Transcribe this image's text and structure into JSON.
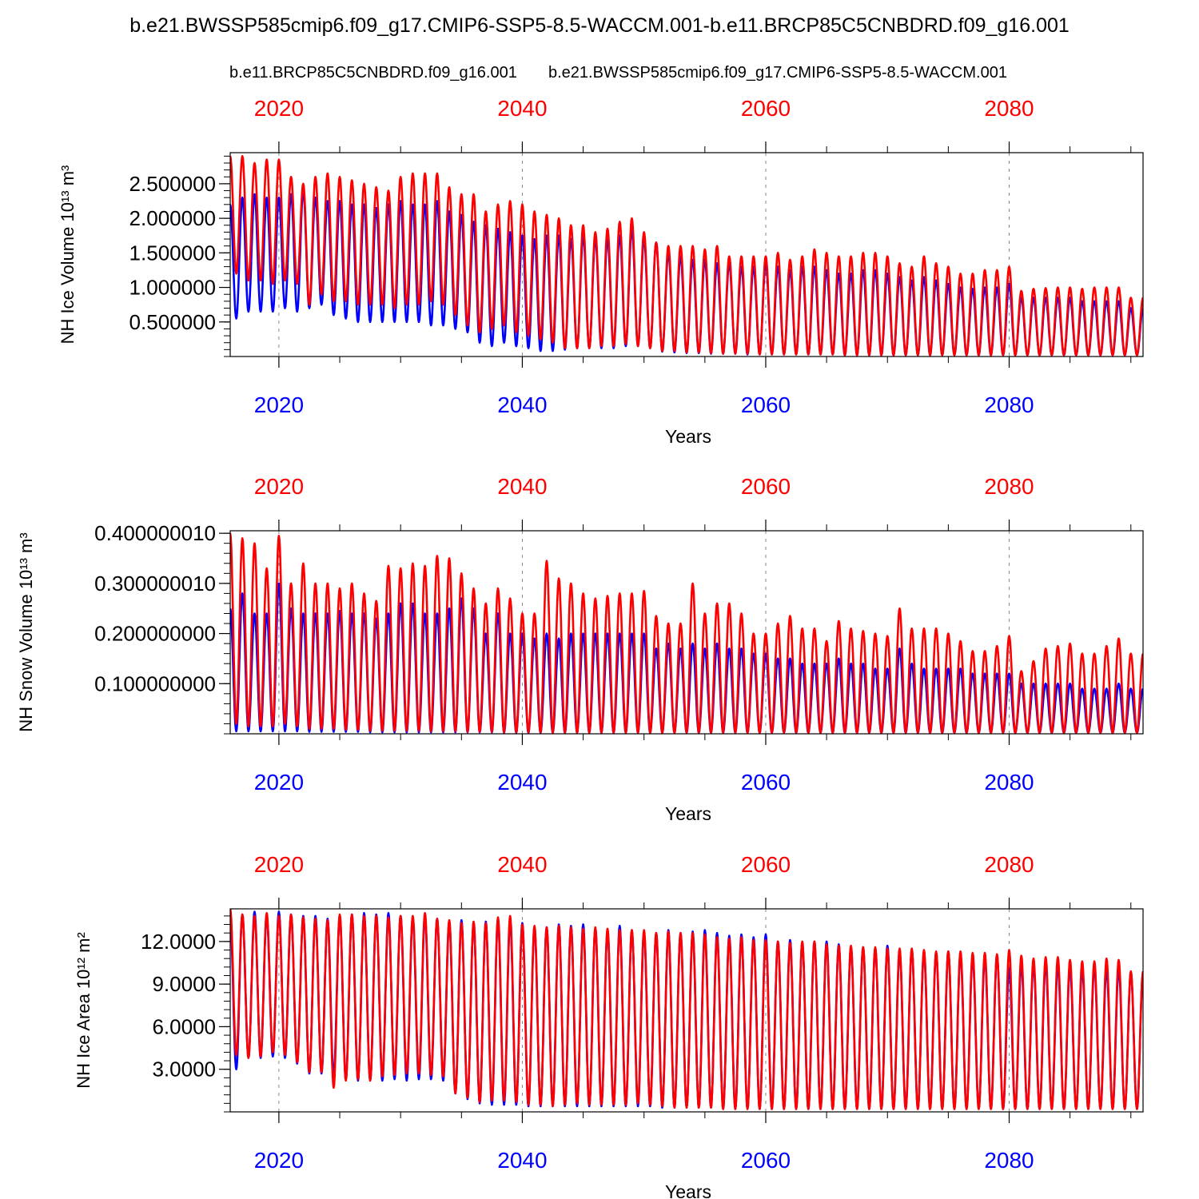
{
  "title": "b.e21.BWSSP585cmip6.f09_g17.CMIP6-SSP5-8.5-WACCM.001-b.e11.BRCP85C5CNBDRD.f09_g16.001",
  "legend": {
    "red_label": "b.e11.BRCP85C5CNBDRD.f09_g16.001",
    "blue_label": "b.e21.BWSSP585cmip6.f09_g17.CMIP6-SSP5-8.5-WACCM.001"
  },
  "colors": {
    "red": "#ff0000",
    "blue": "#0000ff",
    "axis": "#000000",
    "grid": "#888888"
  },
  "chart_data": [
    {
      "type": "line",
      "ylabel": "NH Ice Volume 10¹³ m³",
      "xlabel": "Years",
      "xlim": [
        2016,
        2091
      ],
      "ylim": [
        0,
        2.95
      ],
      "x_ticks": [
        "2020",
        "2040",
        "2060",
        "2080"
      ],
      "x_tick_values": [
        2020,
        2040,
        2060,
        2080
      ],
      "y_ticks": [
        "0.500000",
        "1.000000",
        "1.500000",
        "2.000000",
        "2.500000"
      ],
      "y_tick_values": [
        0.5,
        1.0,
        1.5,
        2.0,
        2.5
      ],
      "y_minor_step": 0.1,
      "series": [
        {
          "name": "b.e11.BRCP85C5CNBDRD.f09_g16.001",
          "color": "red",
          "annual_max": [
            2.9,
            2.9,
            2.8,
            2.85,
            2.85,
            2.6,
            2.5,
            2.6,
            2.65,
            2.6,
            2.55,
            2.5,
            2.45,
            2.4,
            2.6,
            2.65,
            2.65,
            2.65,
            2.45,
            2.35,
            2.35,
            2.1,
            2.2,
            2.25,
            2.2,
            2.1,
            2.05,
            2.0,
            1.9,
            1.9,
            1.8,
            1.85,
            1.95,
            2.0,
            1.8,
            1.65,
            1.6,
            1.6,
            1.6,
            1.55,
            1.6,
            1.45,
            1.45,
            1.45,
            1.45,
            1.5,
            1.4,
            1.45,
            1.55,
            1.5,
            1.45,
            1.45,
            1.5,
            1.5,
            1.45,
            1.35,
            1.3,
            1.45,
            1.35,
            1.3,
            1.2,
            1.2,
            1.25,
            1.25,
            1.3,
            0.95,
            0.98,
            0.99,
            1.0,
            1.0,
            0.98,
            1.0,
            1.0,
            1.0,
            0.85
          ],
          "annual_min": [
            1.2,
            1.1,
            1.1,
            1.05,
            1.1,
            1.05,
            0.75,
            0.9,
            0.8,
            0.8,
            0.75,
            0.75,
            0.75,
            0.7,
            0.75,
            0.75,
            0.8,
            0.75,
            0.6,
            0.45,
            0.35,
            0.4,
            0.45,
            0.35,
            0.3,
            0.25,
            0.2,
            0.12,
            0.12,
            0.12,
            0.15,
            0.15,
            0.18,
            0.15,
            0.12,
            0.08,
            0.08,
            0.06,
            0.06,
            0.05,
            0.04,
            0.04,
            0.04,
            0.03,
            0.03,
            0.03,
            0.03,
            0.03,
            0.03,
            0.03,
            0.02,
            0.02,
            0.02,
            0.02,
            0.02,
            0.02,
            0.02,
            0.02,
            0.02,
            0.02,
            0.02,
            0.02,
            0.02,
            0.02,
            0.02,
            0.02,
            0.02,
            0.02,
            0.02,
            0.02,
            0.02,
            0.02,
            0.02,
            0.02,
            0.02
          ]
        },
        {
          "name": "b.e21.BWSSP585cmip6.f09_g17.CMIP6-SSP5-8.5-WACCM.001",
          "color": "blue",
          "annual_max": [
            2.2,
            2.3,
            2.35,
            2.3,
            2.3,
            2.35,
            2.4,
            2.3,
            2.25,
            2.25,
            2.2,
            2.2,
            2.15,
            2.2,
            2.25,
            2.2,
            2.2,
            2.25,
            2.1,
            2.05,
            1.95,
            1.9,
            1.85,
            1.8,
            1.75,
            1.7,
            1.75,
            1.75,
            1.7,
            1.75,
            1.7,
            1.7,
            1.75,
            1.85,
            1.7,
            1.65,
            1.5,
            1.45,
            1.4,
            1.4,
            1.35,
            1.35,
            1.3,
            1.3,
            1.35,
            1.3,
            1.25,
            1.3,
            1.3,
            1.25,
            1.2,
            1.2,
            1.25,
            1.25,
            1.2,
            1.15,
            1.1,
            1.15,
            1.1,
            1.05,
            1.0,
            0.98,
            1.0,
            1.0,
            1.05,
            0.85,
            0.85,
            0.85,
            0.85,
            0.85,
            0.8,
            0.8,
            0.8,
            0.8,
            0.7
          ],
          "annual_min": [
            0.55,
            0.65,
            0.65,
            0.65,
            0.7,
            0.65,
            0.7,
            0.75,
            0.6,
            0.55,
            0.5,
            0.5,
            0.5,
            0.5,
            0.5,
            0.5,
            0.45,
            0.45,
            0.4,
            0.35,
            0.2,
            0.15,
            0.2,
            0.15,
            0.12,
            0.08,
            0.08,
            0.1,
            0.12,
            0.12,
            0.12,
            0.12,
            0.15,
            0.15,
            0.12,
            0.07,
            0.06,
            0.05,
            0.05,
            0.04,
            0.04,
            0.04,
            0.03,
            0.03,
            0.03,
            0.03,
            0.03,
            0.03,
            0.03,
            0.03,
            0.02,
            0.02,
            0.02,
            0.02,
            0.02,
            0.02,
            0.02,
            0.02,
            0.02,
            0.02,
            0.02,
            0.02,
            0.02,
            0.02,
            0.02,
            0.02,
            0.02,
            0.02,
            0.02,
            0.02,
            0.02,
            0.02,
            0.02,
            0.02,
            0.02
          ]
        }
      ]
    },
    {
      "type": "line",
      "ylabel": "NH Snow Volume 10¹³ m³",
      "xlabel": "Years",
      "xlim": [
        2016,
        2091
      ],
      "ylim": [
        0,
        0.405
      ],
      "x_ticks": [
        "2020",
        "2040",
        "2060",
        "2080"
      ],
      "x_tick_values": [
        2020,
        2040,
        2060,
        2080
      ],
      "y_ticks": [
        "0.100000000",
        "0.200000000",
        "0.300000010",
        "0.400000010"
      ],
      "y_tick_values": [
        0.1,
        0.2,
        0.3,
        0.4
      ],
      "y_minor_step": 0.02,
      "series": [
        {
          "name": "b.e11.BRCP85C5CNBDRD.f09_g16.001",
          "color": "red",
          "annual_max": [
            0.4,
            0.39,
            0.38,
            0.33,
            0.395,
            0.3,
            0.34,
            0.3,
            0.3,
            0.29,
            0.3,
            0.28,
            0.265,
            0.335,
            0.33,
            0.34,
            0.335,
            0.355,
            0.35,
            0.32,
            0.29,
            0.26,
            0.29,
            0.27,
            0.24,
            0.24,
            0.345,
            0.31,
            0.3,
            0.28,
            0.27,
            0.275,
            0.28,
            0.28,
            0.285,
            0.235,
            0.22,
            0.22,
            0.3,
            0.24,
            0.26,
            0.26,
            0.24,
            0.2,
            0.2,
            0.22,
            0.235,
            0.21,
            0.21,
            0.185,
            0.225,
            0.21,
            0.205,
            0.2,
            0.195,
            0.25,
            0.21,
            0.21,
            0.21,
            0.2,
            0.185,
            0.165,
            0.165,
            0.175,
            0.195,
            0.125,
            0.145,
            0.17,
            0.175,
            0.18,
            0.16,
            0.16,
            0.175,
            0.19,
            0.16
          ],
          "annual_min": [
            0.02,
            0.015,
            0.015,
            0.015,
            0.02,
            0.015,
            0.01,
            0.01,
            0.01,
            0.008,
            0.008,
            0.006,
            0.006,
            0.006,
            0.006,
            0.006,
            0.005,
            0.005,
            0.005,
            0.004,
            0.004,
            0.004,
            0.003,
            0.003,
            0.003,
            0.003,
            0.002,
            0.002,
            0.002,
            0.002,
            0.002,
            0.002,
            0.002,
            0.002,
            0.002,
            0.002,
            0.002,
            0.002,
            0.002,
            0.002,
            0.002,
            0.002,
            0.002,
            0.002,
            0.002,
            0.002,
            0.002,
            0.002,
            0.002,
            0.002,
            0.002,
            0.002,
            0.002,
            0.002,
            0.002,
            0.002,
            0.002,
            0.002,
            0.002,
            0.002,
            0.002,
            0.002,
            0.002,
            0.002,
            0.002,
            0.002,
            0.002,
            0.002,
            0.002,
            0.002,
            0.002,
            0.002,
            0.002,
            0.002,
            0.002
          ]
        },
        {
          "name": "b.e21.BWSSP585cmip6.f09_g17.CMIP6-SSP5-8.5-WACCM.001",
          "color": "blue",
          "annual_max": [
            0.25,
            0.28,
            0.24,
            0.24,
            0.3,
            0.25,
            0.24,
            0.24,
            0.24,
            0.245,
            0.24,
            0.24,
            0.23,
            0.24,
            0.26,
            0.26,
            0.24,
            0.24,
            0.25,
            0.27,
            0.25,
            0.2,
            0.24,
            0.2,
            0.2,
            0.19,
            0.2,
            0.19,
            0.2,
            0.2,
            0.2,
            0.2,
            0.2,
            0.2,
            0.2,
            0.17,
            0.18,
            0.17,
            0.18,
            0.17,
            0.18,
            0.17,
            0.17,
            0.16,
            0.16,
            0.15,
            0.15,
            0.14,
            0.14,
            0.14,
            0.15,
            0.14,
            0.14,
            0.13,
            0.13,
            0.17,
            0.14,
            0.13,
            0.13,
            0.13,
            0.13,
            0.12,
            0.12,
            0.12,
            0.12,
            0.1,
            0.1,
            0.1,
            0.1,
            0.1,
            0.09,
            0.09,
            0.09,
            0.1,
            0.09
          ],
          "annual_min": [
            0.005,
            0.005,
            0.005,
            0.005,
            0.005,
            0.005,
            0.004,
            0.004,
            0.004,
            0.004,
            0.004,
            0.003,
            0.003,
            0.003,
            0.003,
            0.003,
            0.003,
            0.003,
            0.003,
            0.003,
            0.003,
            0.003,
            0.002,
            0.002,
            0.002,
            0.002,
            0.002,
            0.002,
            0.002,
            0.002,
            0.002,
            0.002,
            0.002,
            0.002,
            0.002,
            0.002,
            0.002,
            0.002,
            0.002,
            0.002,
            0.002,
            0.002,
            0.002,
            0.002,
            0.002,
            0.002,
            0.002,
            0.002,
            0.002,
            0.002,
            0.002,
            0.002,
            0.002,
            0.002,
            0.002,
            0.002,
            0.002,
            0.002,
            0.002,
            0.002,
            0.002,
            0.002,
            0.002,
            0.002,
            0.002,
            0.002,
            0.002,
            0.002,
            0.002,
            0.002,
            0.002,
            0.002,
            0.002,
            0.002,
            0.002
          ]
        }
      ]
    },
    {
      "type": "line",
      "ylabel": "NH Ice Area 10¹² m²",
      "xlabel": "Years",
      "xlim": [
        2016,
        2091
      ],
      "ylim": [
        0,
        14.3
      ],
      "x_ticks": [
        "2020",
        "2040",
        "2060",
        "2080"
      ],
      "x_tick_values": [
        2020,
        2040,
        2060,
        2080
      ],
      "y_ticks": [
        "3.0000",
        "6.0000",
        "9.0000",
        "12.0000"
      ],
      "y_tick_values": [
        3,
        6,
        9,
        12
      ],
      "y_minor_step": 0.6,
      "series": [
        {
          "name": "b.e11.BRCP85C5CNBDRD.f09_g16.001",
          "color": "red",
          "annual_max": [
            14.3,
            13.9,
            13.8,
            14.0,
            13.8,
            13.9,
            13.7,
            13.6,
            13.5,
            13.9,
            13.9,
            13.8,
            13.8,
            13.7,
            13.8,
            13.8,
            14.0,
            13.6,
            13.5,
            13.3,
            13.4,
            13.3,
            13.7,
            13.8,
            13.2,
            13.1,
            13.0,
            13.1,
            13.0,
            12.9,
            13.0,
            12.9,
            12.8,
            12.8,
            12.8,
            12.6,
            12.7,
            12.6,
            12.6,
            12.5,
            12.3,
            12.2,
            12.3,
            12.1,
            12.1,
            12.0,
            11.9,
            12.0,
            12.0,
            11.8,
            11.7,
            11.7,
            11.6,
            11.6,
            11.5,
            11.5,
            11.5,
            11.4,
            11.3,
            11.3,
            11.3,
            11.2,
            11.2,
            11.1,
            11.4,
            11.0,
            10.8,
            10.9,
            10.9,
            10.7,
            10.6,
            10.6,
            10.8,
            10.7,
            9.9
          ],
          "annual_min": [
            4.0,
            3.8,
            3.9,
            4.2,
            4.0,
            3.5,
            2.8,
            2.8,
            1.7,
            2.2,
            2.3,
            2.2,
            2.5,
            2.6,
            2.7,
            2.7,
            2.6,
            2.5,
            1.3,
            1.0,
            0.7,
            0.8,
            0.8,
            0.7,
            0.5,
            0.5,
            0.4,
            0.5,
            0.6,
            0.5,
            0.5,
            0.5,
            0.5,
            0.6,
            0.5,
            0.4,
            0.3,
            0.3,
            0.3,
            0.3,
            0.2,
            0.2,
            0.2,
            0.2,
            0.2,
            0.2,
            0.2,
            0.2,
            0.2,
            0.2,
            0.2,
            0.2,
            0.2,
            0.2,
            0.2,
            0.2,
            0.2,
            0.2,
            0.2,
            0.2,
            0.2,
            0.2,
            0.2,
            0.2,
            0.2,
            0.2,
            0.2,
            0.2,
            0.2,
            0.2,
            0.2,
            0.2,
            0.2,
            0.2,
            0.2
          ]
        },
        {
          "name": "b.e21.BWSSP585cmip6.f09_g17.CMIP6-SSP5-8.5-WACCM.001",
          "color": "blue",
          "annual_max": [
            13.5,
            13.9,
            14.1,
            13.8,
            14.1,
            13.9,
            13.8,
            13.8,
            13.6,
            13.8,
            13.9,
            14.0,
            13.9,
            14.0,
            13.8,
            13.7,
            13.8,
            13.6,
            13.4,
            13.5,
            13.3,
            13.4,
            13.5,
            13.4,
            13.3,
            13.0,
            13.0,
            13.2,
            13.1,
            13.2,
            12.9,
            12.8,
            13.1,
            12.8,
            12.6,
            12.6,
            12.8,
            12.6,
            12.7,
            12.8,
            12.6,
            12.4,
            12.5,
            12.3,
            12.5,
            12.0,
            12.1,
            11.9,
            12.0,
            12.0,
            11.8,
            11.6,
            11.6,
            11.5,
            11.7,
            11.3,
            11.4,
            11.3,
            11.2,
            11.3,
            11.1,
            10.9,
            10.9,
            11.0,
            10.1,
            10.4,
            10.4,
            10.4,
            10.3,
            10.2,
            10.1,
            10.2,
            10.1,
            10.1,
            9.8
          ],
          "annual_min": [
            3.0,
            3.8,
            3.8,
            3.9,
            3.8,
            3.4,
            2.7,
            2.7,
            2.5,
            2.3,
            2.2,
            2.2,
            2.2,
            2.3,
            2.2,
            2.3,
            2.3,
            2.2,
            1.3,
            0.9,
            0.6,
            0.5,
            0.5,
            0.5,
            0.4,
            0.4,
            0.4,
            0.4,
            0.4,
            0.4,
            0.4,
            0.4,
            0.4,
            0.4,
            0.4,
            0.3,
            0.3,
            0.3,
            0.3,
            0.3,
            0.2,
            0.2,
            0.2,
            0.2,
            0.2,
            0.2,
            0.2,
            0.2,
            0.2,
            0.2,
            0.2,
            0.2,
            0.2,
            0.2,
            0.2,
            0.2,
            0.2,
            0.2,
            0.2,
            0.2,
            0.2,
            0.2,
            0.2,
            0.2,
            0.2,
            0.2,
            0.2,
            0.2,
            0.2,
            0.2,
            0.2,
            0.2,
            0.2,
            0.2,
            0.2
          ]
        }
      ]
    }
  ]
}
